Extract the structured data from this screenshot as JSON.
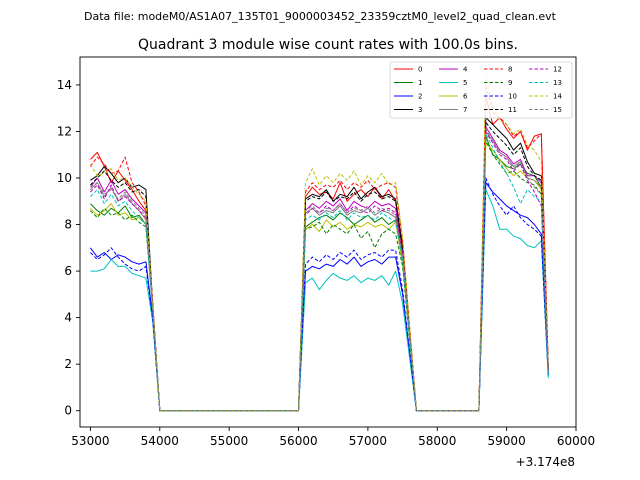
{
  "suptitle": "Data file: modeM0/AS1A07_135T01_9000003452_23359cztM0_level2_quad_clean.evt",
  "chart_data": {
    "type": "line",
    "title": "Quadrant 3 module wise count rates with 100.0s bins.",
    "xlabel": "",
    "ylabel": "",
    "x_offset_label": "+3.174e8",
    "xlim": [
      52850,
      60000
    ],
    "ylim": [
      -0.7,
      15.2
    ],
    "xticks": [
      53000,
      54000,
      55000,
      56000,
      57000,
      58000,
      59000,
      60000
    ],
    "xtick_labels": [
      "53000",
      "54000",
      "55000",
      "56000",
      "57000",
      "58000",
      "59000",
      "60000"
    ],
    "yticks": [
      0,
      2,
      4,
      6,
      8,
      10,
      12,
      14
    ],
    "ytick_labels": [
      "0",
      "2",
      "4",
      "6",
      "8",
      "10",
      "12",
      "14"
    ],
    "legend_location": "upper right",
    "legend_columns": 4,
    "segments": [
      {
        "x0": 53000,
        "n": 10
      },
      {
        "x0": 54000,
        "n": 21
      },
      {
        "x0": 56100,
        "n": 15
      },
      {
        "x0": 57700,
        "n": 9
      },
      {
        "x0": 58600,
        "n": 11
      }
    ],
    "series": [
      {
        "name": "0",
        "color": "#ff0000",
        "dashed": false,
        "values": [
          10.8,
          11.1,
          10.5,
          9.8,
          10.3,
          9.9,
          9.5,
          9.0,
          8.6,
          4.5,
          0,
          0,
          0,
          0,
          0,
          0,
          0,
          0,
          0,
          0,
          0,
          0,
          0,
          0,
          0,
          0,
          0,
          0,
          0,
          0,
          0,
          9.2,
          9.6,
          9.3,
          9.4,
          9.1,
          9.8,
          9.0,
          9.3,
          9.5,
          9.2,
          9.6,
          9.1,
          9.5,
          9.0,
          7.0,
          0,
          0,
          0,
          0,
          0,
          0,
          0,
          0,
          0,
          0.0,
          13.5,
          12.3,
          12.6,
          12.1,
          11.7,
          12.0,
          11.2,
          11.8,
          11.9,
          1.8
        ]
      },
      {
        "name": "1",
        "color": "#008000",
        "dashed": false,
        "values": [
          8.9,
          8.6,
          8.4,
          8.7,
          8.5,
          8.8,
          8.3,
          8.4,
          8.0,
          4.5,
          0,
          0,
          0,
          0,
          0,
          0,
          0,
          0,
          0,
          0,
          0,
          0,
          0,
          0,
          0,
          0,
          0,
          0,
          0,
          0,
          0,
          7.9,
          8.1,
          8.3,
          8.4,
          8.2,
          8.5,
          8.3,
          8.0,
          8.2,
          8.4,
          8.1,
          8.3,
          8.0,
          8.2,
          6.5,
          0,
          0,
          0,
          0,
          0,
          0,
          0,
          0,
          0,
          0.0,
          11.8,
          11.0,
          10.8,
          10.5,
          10.4,
          10.6,
          10.2,
          10.1,
          9.6,
          1.7
        ]
      },
      {
        "name": "2",
        "color": "#0000ff",
        "dashed": false,
        "values": [
          7.0,
          6.6,
          6.8,
          6.5,
          6.7,
          6.6,
          6.4,
          6.3,
          6.4,
          4.0,
          0,
          0,
          0,
          0,
          0,
          0,
          0,
          0,
          0,
          0,
          0,
          0,
          0,
          0,
          0,
          0,
          0,
          0,
          0,
          0,
          0,
          6.0,
          6.2,
          6.1,
          6.3,
          6.2,
          6.5,
          6.3,
          6.6,
          6.2,
          6.4,
          6.5,
          6.3,
          6.6,
          6.6,
          5.0,
          0,
          0,
          0,
          0,
          0,
          0,
          0,
          0,
          0,
          0.0,
          9.8,
          9.4,
          9.1,
          8.8,
          8.6,
          8.4,
          8.3,
          8.0,
          7.6,
          1.5
        ]
      },
      {
        "name": "3",
        "color": "#000000",
        "dashed": false,
        "values": [
          9.9,
          10.1,
          10.5,
          10.2,
          9.8,
          10.0,
          9.6,
          9.7,
          9.5,
          4.5,
          0,
          0,
          0,
          0,
          0,
          0,
          0,
          0,
          0,
          0,
          0,
          0,
          0,
          0,
          0,
          0,
          0,
          0,
          0,
          0,
          0,
          9.1,
          9.3,
          9.2,
          9.5,
          9.0,
          9.3,
          9.2,
          9.6,
          9.1,
          9.4,
          9.6,
          9.2,
          9.3,
          9.1,
          7.0,
          0,
          0,
          0,
          0,
          0,
          0,
          0,
          0,
          0,
          0.0,
          12.6,
          12.3,
          12.0,
          11.7,
          11.2,
          11.5,
          10.7,
          10.2,
          10.1,
          1.8
        ]
      },
      {
        "name": "4",
        "color": "#bf00bf",
        "dashed": false,
        "values": [
          9.6,
          10.0,
          9.4,
          9.9,
          9.3,
          9.5,
          9.1,
          8.8,
          8.5,
          4.5,
          0,
          0,
          0,
          0,
          0,
          0,
          0,
          0,
          0,
          0,
          0,
          0,
          0,
          0,
          0,
          0,
          0,
          0,
          0,
          0,
          0,
          8.6,
          8.9,
          8.7,
          9.0,
          8.8,
          9.1,
          8.6,
          9.0,
          8.8,
          8.7,
          9.0,
          8.8,
          8.9,
          8.7,
          6.8,
          0,
          0,
          0,
          0,
          0,
          0,
          0,
          0,
          0,
          0.0,
          12.2,
          11.7,
          11.2,
          11.0,
          10.6,
          10.8,
          10.1,
          10.1,
          9.8,
          1.7
        ]
      },
      {
        "name": "5",
        "color": "#00bfbf",
        "dashed": false,
        "values": [
          6.0,
          6.0,
          6.1,
          6.5,
          6.2,
          6.2,
          5.9,
          5.8,
          5.7,
          3.8,
          0,
          0,
          0,
          0,
          0,
          0,
          0,
          0,
          0,
          0,
          0,
          0,
          0,
          0,
          0,
          0,
          0,
          0,
          0,
          0,
          0,
          5.5,
          5.7,
          5.2,
          5.6,
          5.9,
          5.7,
          5.6,
          5.8,
          5.5,
          5.7,
          5.6,
          5.8,
          5.4,
          6.0,
          4.6,
          0,
          0,
          0,
          0,
          0,
          0,
          0,
          0,
          0,
          0.0,
          9.5,
          8.8,
          7.8,
          7.8,
          7.5,
          7.4,
          7.1,
          7.0,
          7.3,
          1.4
        ]
      },
      {
        "name": "6",
        "color": "#bfbf00",
        "dashed": false,
        "values": [
          8.7,
          8.4,
          8.6,
          8.9,
          8.4,
          8.5,
          8.2,
          8.3,
          8.0,
          4.4,
          0,
          0,
          0,
          0,
          0,
          0,
          0,
          0,
          0,
          0,
          0,
          0,
          0,
          0,
          0,
          0,
          0,
          0,
          0,
          0,
          0,
          7.8,
          8.0,
          7.7,
          8.2,
          7.9,
          8.1,
          7.8,
          8.0,
          7.9,
          8.1,
          7.9,
          8.0,
          7.8,
          8.1,
          6.3,
          0,
          0,
          0,
          0,
          0,
          0,
          0,
          0,
          0,
          0.0,
          11.5,
          11.2,
          10.8,
          10.4,
          10.1,
          10.3,
          10.0,
          9.9,
          9.5,
          1.6
        ]
      },
      {
        "name": "7",
        "color": "#808080",
        "dashed": false,
        "values": [
          9.5,
          9.8,
          9.2,
          9.6,
          9.0,
          9.3,
          8.9,
          8.6,
          8.2,
          4.4,
          0,
          0,
          0,
          0,
          0,
          0,
          0,
          0,
          0,
          0,
          0,
          0,
          0,
          0,
          0,
          0,
          0,
          0,
          0,
          0,
          0,
          8.5,
          8.7,
          8.4,
          8.6,
          8.5,
          8.8,
          8.4,
          8.6,
          8.5,
          8.7,
          8.4,
          8.6,
          8.5,
          8.3,
          6.6,
          0,
          0,
          0,
          0,
          0,
          0,
          0,
          0,
          0,
          0.0,
          12.0,
          11.6,
          11.1,
          10.9,
          10.5,
          10.7,
          10.0,
          9.9,
          9.6,
          1.7
        ]
      },
      {
        "name": "8",
        "color": "#ff0000",
        "dashed": true,
        "values": [
          10.5,
          10.9,
          10.6,
          10.2,
          10.3,
          10.9,
          9.8,
          9.4,
          8.8,
          4.6,
          0,
          0,
          0,
          0,
          0,
          0,
          0,
          0,
          0,
          0,
          0,
          0,
          0,
          0,
          0,
          0,
          0,
          0,
          0,
          0,
          0,
          9.4,
          9.8,
          9.5,
          9.7,
          9.6,
          9.9,
          9.5,
          9.8,
          9.6,
          9.9,
          9.5,
          9.7,
          9.8,
          9.6,
          7.3,
          0,
          0,
          0,
          0,
          0,
          0,
          0,
          0,
          0,
          0.0,
          14.0,
          12.8,
          12.6,
          12.3,
          11.8,
          12.0,
          11.3,
          11.6,
          11.9,
          1.9
        ]
      },
      {
        "name": "9",
        "color": "#008000",
        "dashed": true,
        "values": [
          8.6,
          8.3,
          8.7,
          8.4,
          8.5,
          8.2,
          8.4,
          8.1,
          7.9,
          4.3,
          0,
          0,
          0,
          0,
          0,
          0,
          0,
          0,
          0,
          0,
          0,
          0,
          0,
          0,
          0,
          0,
          0,
          0,
          0,
          0,
          0,
          7.8,
          7.9,
          8.1,
          7.6,
          8.0,
          7.8,
          7.6,
          8.0,
          7.4,
          7.7,
          7.0,
          7.6,
          7.8,
          7.6,
          6.2,
          0,
          0,
          0,
          0,
          0,
          0,
          0,
          0,
          0,
          0.0,
          11.6,
          11.0,
          10.6,
          10.2,
          10.3,
          10.0,
          9.8,
          9.7,
          9.3,
          1.6
        ]
      },
      {
        "name": "10",
        "color": "#0000ff",
        "dashed": true,
        "values": [
          6.8,
          6.5,
          6.7,
          7.0,
          6.6,
          6.3,
          6.1,
          6.0,
          6.2,
          3.9,
          0,
          0,
          0,
          0,
          0,
          0,
          0,
          0,
          0,
          0,
          0,
          0,
          0,
          0,
          0,
          0,
          0,
          0,
          0,
          0,
          0,
          6.3,
          6.6,
          6.4,
          6.7,
          6.5,
          6.8,
          6.6,
          6.9,
          6.5,
          6.7,
          6.8,
          6.6,
          6.9,
          6.9,
          5.2,
          0,
          0,
          0,
          0,
          0,
          0,
          0,
          0,
          0,
          0.0,
          10.0,
          9.3,
          8.8,
          8.4,
          8.8,
          8.3,
          8.0,
          7.8,
          7.5,
          1.5
        ]
      },
      {
        "name": "11",
        "color": "#000000",
        "dashed": true,
        "values": [
          9.7,
          10.0,
          10.3,
          9.9,
          9.6,
          9.8,
          9.4,
          9.5,
          9.2,
          4.4,
          0,
          0,
          0,
          0,
          0,
          0,
          0,
          0,
          0,
          0,
          0,
          0,
          0,
          0,
          0,
          0,
          0,
          0,
          0,
          0,
          0,
          9.0,
          9.2,
          9.1,
          9.4,
          9.0,
          9.2,
          9.1,
          9.4,
          9.0,
          9.3,
          9.4,
          9.1,
          9.2,
          9.0,
          6.9,
          0,
          0,
          0,
          0,
          0,
          0,
          0,
          0,
          0,
          0.0,
          12.4,
          12.0,
          11.7,
          11.4,
          11.0,
          11.3,
          10.5,
          10.1,
          9.9,
          1.8
        ]
      },
      {
        "name": "12",
        "color": "#bf00bf",
        "dashed": true,
        "values": [
          9.4,
          9.7,
          9.1,
          9.7,
          9.0,
          9.2,
          8.9,
          8.6,
          8.3,
          4.4,
          0,
          0,
          0,
          0,
          0,
          0,
          0,
          0,
          0,
          0,
          0,
          0,
          0,
          0,
          0,
          0,
          0,
          0,
          0,
          0,
          0,
          8.4,
          8.7,
          8.5,
          8.8,
          8.6,
          8.9,
          8.5,
          8.8,
          8.6,
          8.5,
          8.8,
          8.6,
          8.7,
          8.5,
          6.7,
          0,
          0,
          0,
          0,
          0,
          0,
          0,
          0,
          0,
          0.0,
          12.0,
          11.5,
          11.0,
          10.8,
          10.3,
          10.6,
          9.9,
          9.4,
          8.8,
          1.7
        ]
      },
      {
        "name": "13",
        "color": "#00bfbf",
        "dashed": true,
        "values": [
          9.2,
          9.5,
          8.9,
          9.3,
          8.8,
          9.0,
          8.6,
          8.3,
          8.0,
          4.3,
          0,
          0,
          0,
          0,
          0,
          0,
          0,
          0,
          0,
          0,
          0,
          0,
          0,
          0,
          0,
          0,
          0,
          0,
          0,
          0,
          0,
          8.2,
          8.4,
          8.2,
          8.5,
          8.3,
          8.6,
          8.2,
          8.5,
          8.3,
          8.4,
          8.2,
          8.5,
          8.3,
          8.1,
          6.5,
          0,
          0,
          0,
          0,
          0,
          0,
          0,
          0,
          0,
          0.0,
          11.9,
          11.3,
          10.7,
          10.2,
          9.6,
          8.9,
          9.5,
          9.2,
          9.0,
          1.6
        ]
      },
      {
        "name": "14",
        "color": "#bfbf00",
        "dashed": true,
        "values": [
          10.6,
          10.1,
          10.2,
          10.4,
          9.9,
          10.0,
          9.6,
          9.3,
          9.0,
          4.5,
          0,
          0,
          0,
          0,
          0,
          0,
          0,
          0,
          0,
          0,
          0,
          0,
          0,
          0,
          0,
          0,
          0,
          0,
          0,
          0,
          0,
          9.8,
          10.4,
          9.7,
          10.1,
          9.8,
          10.2,
          9.9,
          10.3,
          9.7,
          10.1,
          9.8,
          10.2,
          9.7,
          9.8,
          7.4,
          0,
          0,
          0,
          0,
          0,
          0,
          0,
          0,
          0,
          0.0,
          14.4,
          13.0,
          12.5,
          12.3,
          11.9,
          12.1,
          11.4,
          11.2,
          10.7,
          1.9
        ]
      },
      {
        "name": "15",
        "color": "#808080",
        "dashed": true,
        "values": [
          9.6,
          9.8,
          9.3,
          9.5,
          9.1,
          9.4,
          9.0,
          8.7,
          8.4,
          4.4,
          0,
          0,
          0,
          0,
          0,
          0,
          0,
          0,
          0,
          0,
          0,
          0,
          0,
          0,
          0,
          0,
          0,
          0,
          0,
          0,
          0,
          8.6,
          8.8,
          8.5,
          8.7,
          8.6,
          8.9,
          8.5,
          8.7,
          8.6,
          8.8,
          8.5,
          8.7,
          8.6,
          8.4,
          6.7,
          0,
          0,
          0,
          0,
          0,
          0,
          0,
          0,
          0,
          0.0,
          12.1,
          11.6,
          11.1,
          10.9,
          10.4,
          10.7,
          10.0,
          9.6,
          9.3,
          1.7
        ]
      }
    ]
  }
}
